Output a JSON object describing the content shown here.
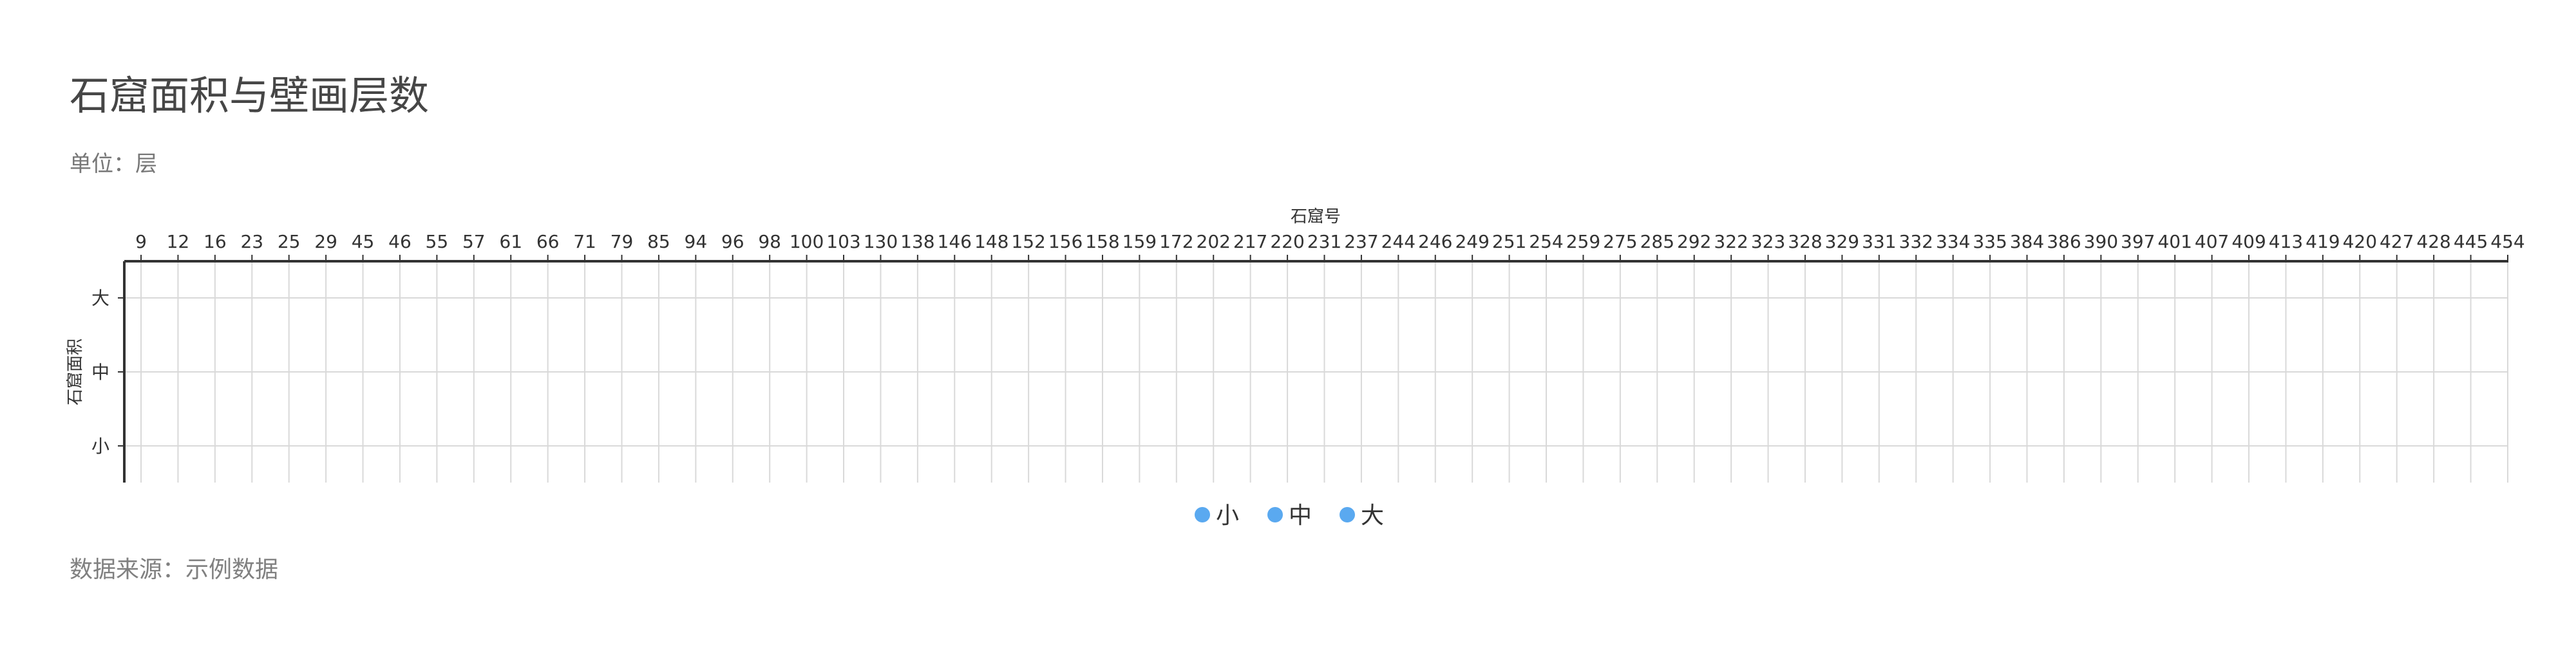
{
  "title": "石窟面积与壁画层数",
  "subtitle": "单位：层",
  "source": "数据来源：示例数据",
  "colors": {
    "series": "#5aa9f0",
    "axis": "#333333",
    "grid": "#d9d9d9",
    "title": "#464646"
  },
  "chart_data": {
    "type": "scatter",
    "xlabel": "石窟号",
    "ylabel": "石窟面积",
    "x_axis_position": "top",
    "x_categories": [
      "9",
      "12",
      "16",
      "23",
      "25",
      "29",
      "45",
      "46",
      "55",
      "57",
      "61",
      "66",
      "71",
      "79",
      "85",
      "94",
      "96",
      "98",
      "100",
      "103",
      "130",
      "138",
      "146",
      "148",
      "152",
      "156",
      "158",
      "159",
      "172",
      "202",
      "217",
      "220",
      "231",
      "237",
      "244",
      "246",
      "249",
      "251",
      "254",
      "259",
      "275",
      "285",
      "292",
      "322",
      "323",
      "328",
      "329",
      "331",
      "332",
      "334",
      "335",
      "384",
      "386",
      "390",
      "397",
      "401",
      "407",
      "409",
      "413",
      "419",
      "420",
      "427",
      "428",
      "445",
      "454"
    ],
    "y_categories": [
      "小",
      "中",
      "大"
    ],
    "grid": true,
    "legend_position": "bottom-center",
    "series": [
      {
        "name": "小",
        "points": []
      },
      {
        "name": "中",
        "points": []
      },
      {
        "name": "大",
        "points": []
      }
    ]
  }
}
